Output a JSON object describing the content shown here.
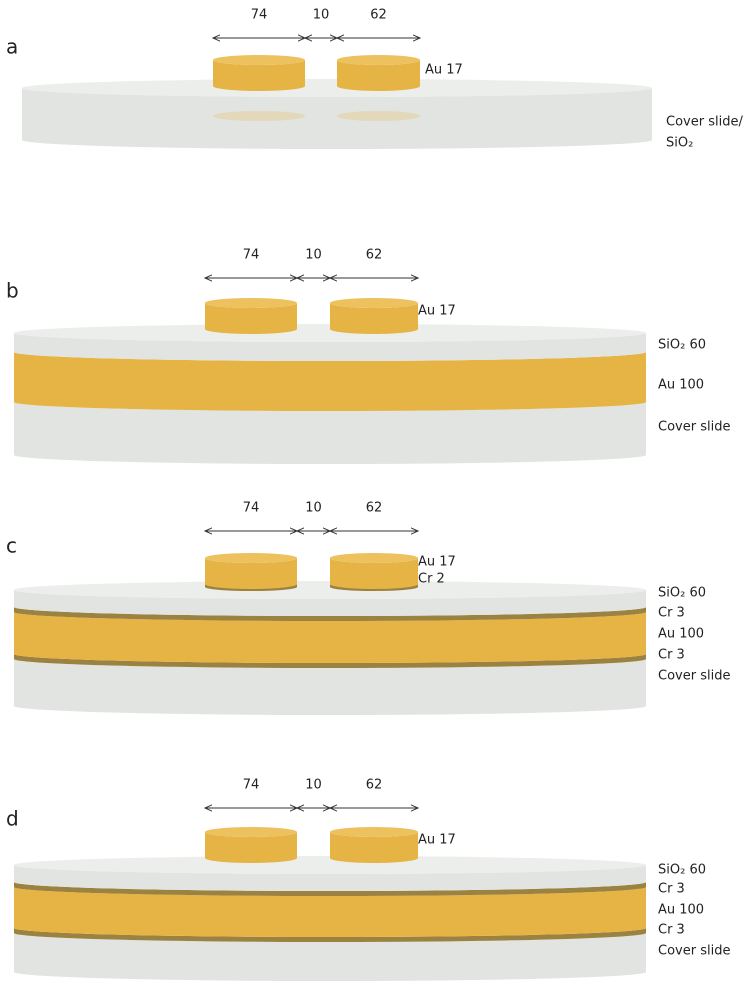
{
  "panels": [
    {
      "letter": "a",
      "dimensions": [
        "74",
        "10",
        "62"
      ],
      "labels": [
        "Au 17",
        "Cover slide/",
        "SiO₂"
      ]
    },
    {
      "letter": "b",
      "dimensions": [
        "74",
        "10",
        "62"
      ],
      "labels": [
        "Au 17",
        "SiO₂ 60",
        "Au 100",
        "Cover slide"
      ]
    },
    {
      "letter": "c",
      "dimensions": [
        "74",
        "10",
        "62"
      ],
      "labels": [
        "Au 17",
        "Cr 2",
        "SiO₂ 60",
        "Cr 3",
        "Au 100",
        "Cr 3",
        "Cover slide"
      ]
    },
    {
      "letter": "d",
      "dimensions": [
        "74",
        "10",
        "62"
      ],
      "labels": [
        "Au 17",
        "SiO₂ 60",
        "Cr 3",
        "Au 100",
        "Cr 3",
        "Cover slide"
      ]
    }
  ]
}
